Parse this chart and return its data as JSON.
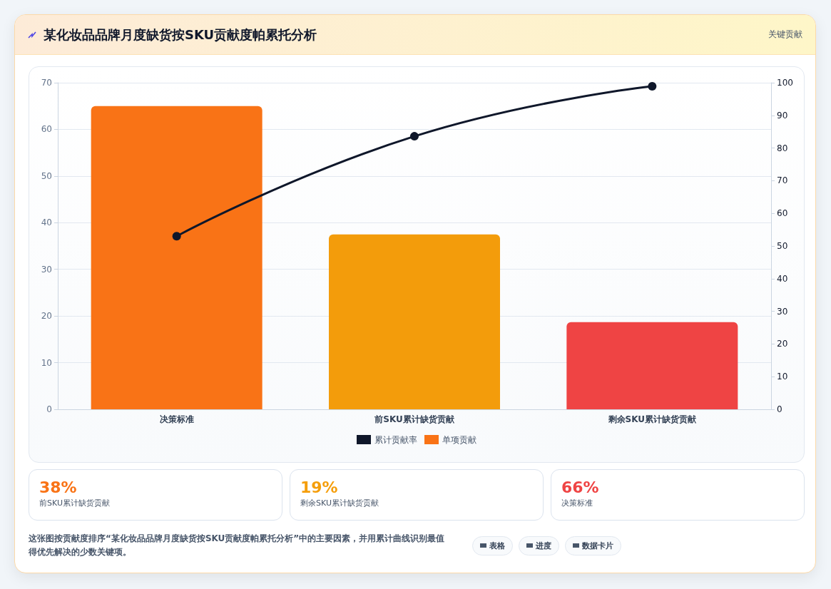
{
  "chart_data": [
    {
      "type": "bar",
      "title": "某化妆品品牌月度缺货按SKU贡献度帕累托分析",
      "annotations": [
        "关键贡献"
      ],
      "categories": [
        "决策标准",
        "前SKU累计缺货贡献",
        "剩余SKU累计缺货贡献"
      ],
      "series": [
        {
          "name": "累计贡献率",
          "type": "line",
          "axis": "y2",
          "color": "#0f172a",
          "marker": "circle",
          "line_style": "solid",
          "values": [
            53,
            83.6,
            98.9
          ]
        },
        {
          "name": "单项贡献",
          "type": "bar",
          "color": "#f97316",
          "colors": [
            "#f97316",
            "#f39c0b",
            "#ef4444"
          ],
          "values": [
            65,
            37.5,
            18.7
          ]
        }
      ],
      "ylim": [
        0,
        70
      ],
      "yticks": [
        0,
        10,
        20,
        30,
        40,
        50,
        60,
        70
      ],
      "y2lim": [
        0,
        100
      ],
      "y2ticks": [
        0,
        10,
        20,
        30,
        40,
        50,
        60,
        70,
        80,
        90,
        100
      ],
      "grid": "y",
      "legend": "bottom"
    },
    {
      "type": "other",
      "categories": [
        "前SKU累计缺货贡献",
        "剩余SKU累计缺货贡献",
        "决策标准"
      ],
      "colors": [
        "#f97316",
        "#f59e0b",
        "#ef4444"
      ],
      "annotations": [
        "38%",
        "19%",
        "66%",
        "这张图按贡献度排序“某化妆品品牌月度缺货按SKU贡献度帕累托分析”中的主要因素，并用累计曲线识别最值得优先解决的少数关键项。",
        "表格",
        "进度",
        "数据卡片"
      ]
    }
  ]
}
